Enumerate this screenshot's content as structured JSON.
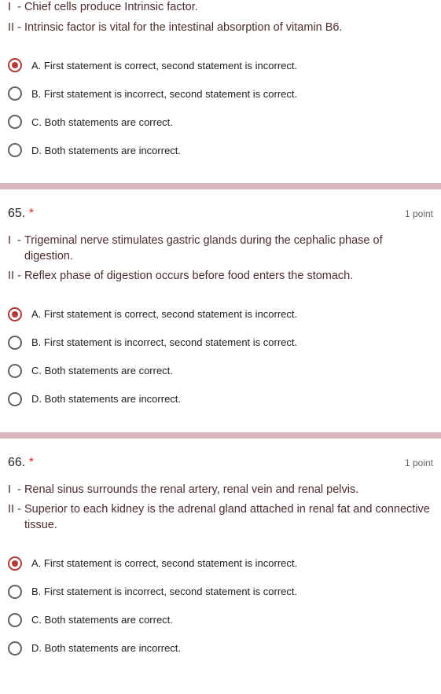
{
  "colors": {
    "divider": "#d9b8bb",
    "statement_text": "#4d2c2c",
    "radio_selected": "#b23a3a",
    "radio_border": "#5f6368",
    "required": "#d93025",
    "points_text": "#5f6368",
    "option_text": "#202124",
    "background": "#ffffff"
  },
  "typography": {
    "statement_font": "Verdana",
    "statement_size_pt": 11,
    "option_size_pt": 10,
    "qnumber_size_pt": 12,
    "points_size_pt": 9
  },
  "common_options": {
    "a": "A. First statement is correct, second statement is incorrect.",
    "b": "B. First statement is incorrect, second statement is correct.",
    "c": "C. Both statements are correct.",
    "d": "D. Both statements are incorrect."
  },
  "questions": [
    {
      "number": null,
      "points": null,
      "statements": [
        {
          "label": "I  - ",
          "text": "Chief cells produce Intrinsic factor."
        },
        {
          "label": "II - ",
          "text": "Intrinsic factor is vital for the intestinal absorption of vitamin B6."
        }
      ],
      "selected": 0
    },
    {
      "number": "65.",
      "points": "1 point",
      "statements": [
        {
          "label": "I  - ",
          "text": "Trigeminal nerve stimulates gastric glands during the cephalic phase of digestion."
        },
        {
          "label": "II - ",
          "text": "Reflex phase of digestion occurs before food enters the stomach."
        }
      ],
      "selected": 0
    },
    {
      "number": "66.",
      "points": "1 point",
      "statements": [
        {
          "label": "I  - ",
          "text": "Renal sinus surrounds the renal artery, renal vein and renal pelvis."
        },
        {
          "label": "II - ",
          "text": "Superior to each kidney is the adrenal gland attached in renal fat and connective tissue."
        }
      ],
      "selected": 0
    }
  ]
}
